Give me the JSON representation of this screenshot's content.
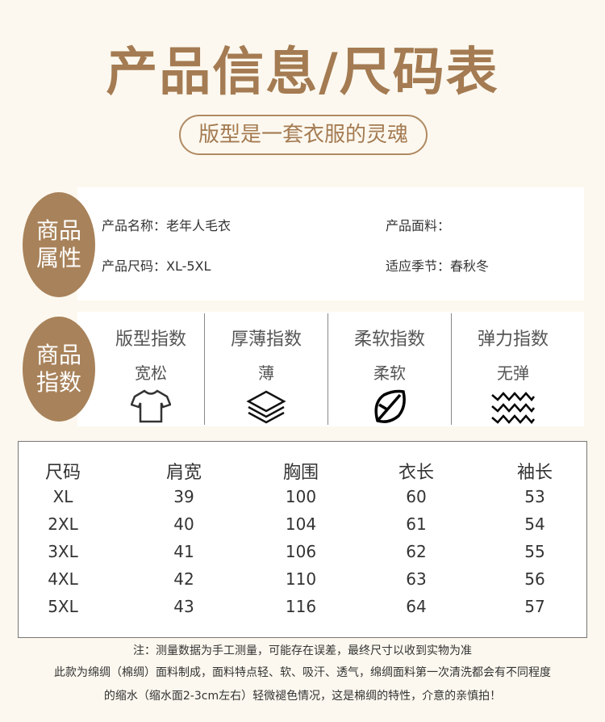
{
  "title": "产品信息/尺码表",
  "subtitle": "版型是一套衣服的灵魂",
  "attributes": {
    "badge": "商品属性",
    "name": "产品名称：老年人毛衣",
    "fabric": "产品面料：",
    "size": "产品尺码：XL-5XL",
    "season": "适应季节：春秋冬"
  },
  "indices": {
    "badge": "商品指数",
    "items": [
      {
        "label": "版型指数",
        "value": "宽松",
        "icon": "t-shirt-icon"
      },
      {
        "label": "厚薄指数",
        "value": "薄",
        "icon": "layers-icon"
      },
      {
        "label": "柔软指数",
        "value": "柔软",
        "icon": "leaf-icon"
      },
      {
        "label": "弹力指数",
        "value": "无弹",
        "icon": "waves-icon"
      }
    ]
  },
  "size_table": {
    "headers": [
      "尺码",
      "肩宽",
      "胸围",
      "衣长",
      "袖长"
    ],
    "rows": [
      [
        "XL",
        "39",
        "100",
        "60",
        "53"
      ],
      [
        "2XL",
        "40",
        "104",
        "61",
        "54"
      ],
      [
        "3XL",
        "41",
        "106",
        "62",
        "55"
      ],
      [
        "4XL",
        "42",
        "110",
        "63",
        "56"
      ],
      [
        "5XL",
        "43",
        "116",
        "64",
        "57"
      ]
    ]
  },
  "notes": [
    "注：测量数据为手工测量，可能存在误差，最终尺寸以收到实物为准",
    "此款为绵绸（棉绸）面料制成，面料特点轻、软、吸汗、透气，绵绸面料第一次清洗都会有不同程度",
    "的缩水（缩水面2-3cm左右）轻微褪色情况，这是棉绸的特性，介意的亲慎拍！"
  ],
  "colors": {
    "accent": "#a8825a",
    "background": "#fcf8ef"
  }
}
